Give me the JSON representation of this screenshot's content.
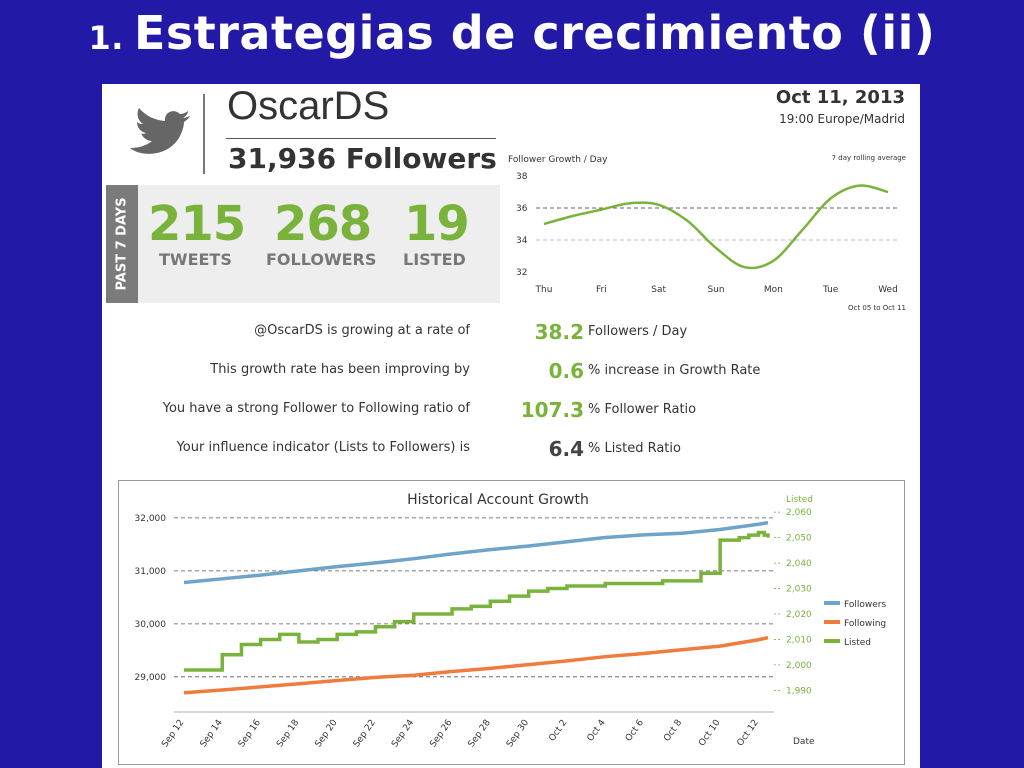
{
  "slide": {
    "number": "1.",
    "title": "Estrategias de crecimiento (ii)"
  },
  "profile": {
    "account": "OscarDS",
    "followers_text": "31,936 Followers",
    "date": "Oct 11, 2013",
    "time": "19:00 Europe/Madrid"
  },
  "past7": {
    "side_label": "PAST 7 DAYS",
    "stats": [
      {
        "value": "215",
        "label": "TWEETS"
      },
      {
        "value": "268",
        "label": "FOLLOWERS"
      },
      {
        "value": "19",
        "label": "LISTED"
      }
    ]
  },
  "growth_rows": [
    {
      "label": "@OscarDS is growing at a rate of",
      "value": "38.2",
      "unit": "Followers / Day"
    },
    {
      "label": "This growth rate has been improving by",
      "value": "0.6",
      "unit": "% increase in Growth Rate"
    },
    {
      "label": "You have a strong Follower to Following ratio of",
      "value": "107.3",
      "unit": "% Follower Ratio"
    },
    {
      "label": "Your influence indicator (Lists to Followers) is",
      "value": "6.4",
      "unit": "% Listed Ratio"
    }
  ],
  "colors": {
    "green": "#7ab33b",
    "blue": "#6fa3c7",
    "orange": "#ef7c3c",
    "background": "#2319a7"
  },
  "chart_data": [
    {
      "type": "line",
      "title": "Follower Growth / Day",
      "note": "7 day rolling average",
      "range_text": "Oct 05 to Oct 11",
      "categories": [
        "Thu",
        "Fri",
        "Sat",
        "Sun",
        "Mon",
        "Tue",
        "Wed"
      ],
      "x": [
        0,
        0.5,
        1,
        1.5,
        2,
        2.5,
        3,
        3.5,
        4,
        4.5,
        5,
        5.5,
        6
      ],
      "values": [
        35.0,
        35.5,
        35.9,
        36.3,
        36.2,
        35.2,
        33.5,
        32.3,
        32.7,
        34.6,
        36.6,
        37.4,
        37.0
      ],
      "yticks": [
        32,
        34,
        36,
        38
      ],
      "ylim": [
        32,
        38
      ],
      "reference_lines": [
        36,
        34
      ],
      "grid": false
    },
    {
      "type": "line",
      "title": "Historical Account Growth",
      "xlabel": "Date",
      "y2label": "Listed",
      "xticks": [
        "Sep 12",
        "Sep 14",
        "Sep 16",
        "Sep 18",
        "Sep 20",
        "Sep 22",
        "Sep 24",
        "Sep 26",
        "Sep 28",
        "Sep 30",
        "Oct 2",
        "Oct 4",
        "Oct 6",
        "Oct 8",
        "Oct 10",
        "Oct 12"
      ],
      "yticks": [
        "29,000",
        "30,000",
        "31,000",
        "32,000"
      ],
      "ylim": [
        28600,
        32300
      ],
      "y2ticks": [
        "1,990",
        "2,000",
        "2,010",
        "2,020",
        "2,030",
        "2,040",
        "2,050",
        "2,060"
      ],
      "y2lim": [
        1987,
        2064
      ],
      "legend": "right",
      "series": [
        {
          "name": "Followers",
          "axis": "left",
          "x": [
            0,
            2,
            4,
            6,
            8,
            10,
            12,
            14,
            16,
            18,
            20,
            22,
            24,
            26,
            28,
            30,
            30.5
          ],
          "values": [
            30780,
            30850,
            30920,
            31000,
            31080,
            31150,
            31230,
            31320,
            31400,
            31470,
            31550,
            31630,
            31680,
            31710,
            31780,
            31880,
            31910
          ]
        },
        {
          "name": "Following",
          "axis": "left",
          "x": [
            0,
            2,
            4,
            6,
            8,
            10,
            12,
            14,
            16,
            18,
            20,
            22,
            24,
            26,
            28,
            30,
            30.5
          ],
          "values": [
            28700,
            28750,
            28810,
            28870,
            28930,
            28990,
            29030,
            29100,
            29160,
            29230,
            29300,
            29380,
            29440,
            29510,
            29580,
            29700,
            29740
          ]
        },
        {
          "name": "Listed",
          "axis": "right",
          "x": [
            0,
            1,
            2,
            3,
            4,
            5,
            6,
            7,
            8,
            9,
            10,
            11,
            12,
            13,
            14,
            15,
            16,
            17,
            18,
            19,
            20,
            21,
            22,
            23,
            24,
            25,
            26,
            27,
            28,
            29,
            29.5,
            30,
            30.3,
            30.5
          ],
          "values": [
            1998,
            1998,
            2004,
            2008,
            2010,
            2012,
            2009,
            2010,
            2012,
            2013,
            2015,
            2017,
            2020,
            2020,
            2022,
            2023,
            2025,
            2027,
            2029,
            2030,
            2031,
            2031,
            2032,
            2032,
            2032,
            2033,
            2033,
            2036,
            2049,
            2050,
            2051,
            2052,
            2051,
            2050
          ]
        }
      ]
    }
  ]
}
